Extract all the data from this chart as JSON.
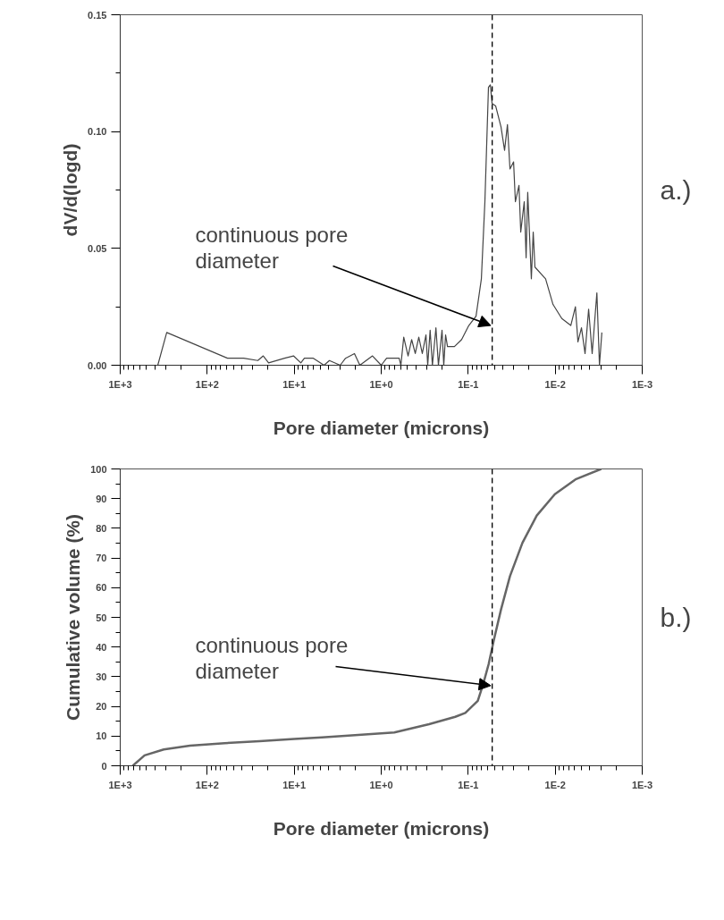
{
  "chart_data": [
    {
      "type": "line",
      "ylabel": "dV/d(logd)",
      "xlabel": "Pore diameter (microns)",
      "log": "x",
      "grid": false,
      "x": [
        370,
        292,
        58.5,
        38.2,
        26.2,
        22.7,
        19.7,
        12.9,
        10.2,
        8.39,
        7.64,
        6.03,
        4.54,
        3.94,
        2.96,
        2.57,
        2.03,
        1.76,
        1.26,
        1.0,
        0.867,
        0.622,
        0.594,
        0.551,
        0.491,
        0.447,
        0.406,
        0.37,
        0.337,
        0.306,
        0.292,
        0.274,
        0.258,
        0.235,
        0.22,
        0.2,
        0.191,
        0.182,
        0.173,
        0.144,
        0.119,
        0.0984,
        0.0813,
        0.0706,
        0.0643,
        0.0585,
        0.0557,
        0.0532,
        0.0484,
        0.042,
        0.0382,
        0.0354,
        0.0331,
        0.0301,
        0.0287,
        0.0261,
        0.0249,
        0.0227,
        0.0216,
        0.0207,
        0.0188,
        0.0179,
        0.0171,
        0.0129,
        0.0106,
        0.0084,
        0.00662,
        0.00586,
        0.00548,
        0.00499,
        0.00454,
        0.00413,
        0.00376,
        0.00332,
        0.0031,
        0.00291
      ],
      "series": [
        {
          "color": "#444444",
          "values": [
            0,
            0.014,
            0.003,
            0.003,
            0.002,
            0.004,
            0.001,
            0.003,
            0.004,
            0.001,
            0.003,
            0.003,
            0,
            0.002,
            0,
            0.003,
            0.005,
            0,
            0.004,
            0,
            0.003,
            0.003,
            0,
            0.012,
            0.004,
            0.011,
            0.005,
            0.012,
            0.005,
            0.013,
            0,
            0.015,
            0,
            0.016,
            0,
            0.015,
            0,
            0.013,
            0.008,
            0.008,
            0.011,
            0.017,
            0.021,
            0.037,
            0.07,
            0.119,
            0.12,
            0.112,
            0.111,
            0.102,
            0.092,
            0.103,
            0.084,
            0.087,
            0.07,
            0.077,
            0.057,
            0.07,
            0.046,
            0.074,
            0.037,
            0.057,
            0.042,
            0.037,
            0.026,
            0.02,
            0.017,
            0.025,
            0.01,
            0.016,
            0.005,
            0.024,
            0.005,
            0.031,
            0,
            0.014
          ]
        }
      ],
      "xlim": [
        1000,
        0.001
      ],
      "xticks": [
        {
          "value": 1000,
          "label": "1E+3"
        },
        {
          "value": 100,
          "label": "1E+2"
        },
        {
          "value": 10,
          "label": "1E+1"
        },
        {
          "value": 1,
          "label": "1E+0"
        },
        {
          "value": 0.1,
          "label": "1E-1"
        },
        {
          "value": 0.01,
          "label": "1E-2"
        },
        {
          "value": 0.001,
          "label": "1E-3"
        }
      ],
      "ylim": [
        0,
        0.15
      ],
      "yticks": [
        {
          "value": 0,
          "label": "0.00"
        },
        {
          "value": 0.05,
          "label": "0.05"
        },
        {
          "value": 0.1,
          "label": "0.10"
        },
        {
          "value": 0.15,
          "label": "0.15"
        }
      ],
      "ref_lines": [
        {
          "axis": "x",
          "value": 0.053,
          "line_style": "dashed",
          "color": "#000000"
        }
      ],
      "annotations": [
        {
          "text": "continuous pore diameter",
          "x": 0.055,
          "y": 0.017
        },
        "a.)"
      ]
    },
    {
      "type": "line",
      "ylabel": "Cumulative volume (%)",
      "xlabel": "Pore diameter (microns)",
      "log": "x",
      "grid": false,
      "x": [
        718,
        525,
        316,
        158,
        63.1,
        25.1,
        10,
        4.79,
        2.0,
        0.708,
        0.282,
        0.141,
        0.108,
        0.0776,
        0.0673,
        0.0583,
        0.0507,
        0.042,
        0.0331,
        0.0238,
        0.0163,
        0.0101,
        0.00575,
        0.00296
      ],
      "series": [
        {
          "color": "#666666",
          "values": [
            0,
            3.5,
            5.5,
            6.8,
            7.6,
            8.3,
            9.0,
            9.6,
            10.3,
            11.2,
            14,
            16.5,
            17.8,
            21.9,
            27.5,
            34.2,
            42.4,
            52.6,
            63.9,
            75.1,
            84.3,
            91.5,
            96.6,
            100
          ]
        }
      ],
      "xlim": [
        1000,
        0.001
      ],
      "xticks": [
        {
          "value": 1000,
          "label": "1E+3"
        },
        {
          "value": 100,
          "label": "1E+2"
        },
        {
          "value": 10,
          "label": "1E+1"
        },
        {
          "value": 1,
          "label": "1E+0"
        },
        {
          "value": 0.1,
          "label": "1E-1"
        },
        {
          "value": 0.01,
          "label": "1E-2"
        },
        {
          "value": 0.001,
          "label": "1E-3"
        }
      ],
      "ylim": [
        0,
        100
      ],
      "yticks": [
        0,
        10,
        20,
        30,
        40,
        50,
        60,
        70,
        80,
        90,
        100
      ],
      "ref_lines": [
        {
          "axis": "x",
          "value": 0.053,
          "line_style": "dashed",
          "color": "#000000"
        }
      ],
      "annotations": [
        {
          "text": "continuous pore diameter",
          "x": 0.055,
          "y": 27
        },
        "b.)"
      ]
    }
  ]
}
